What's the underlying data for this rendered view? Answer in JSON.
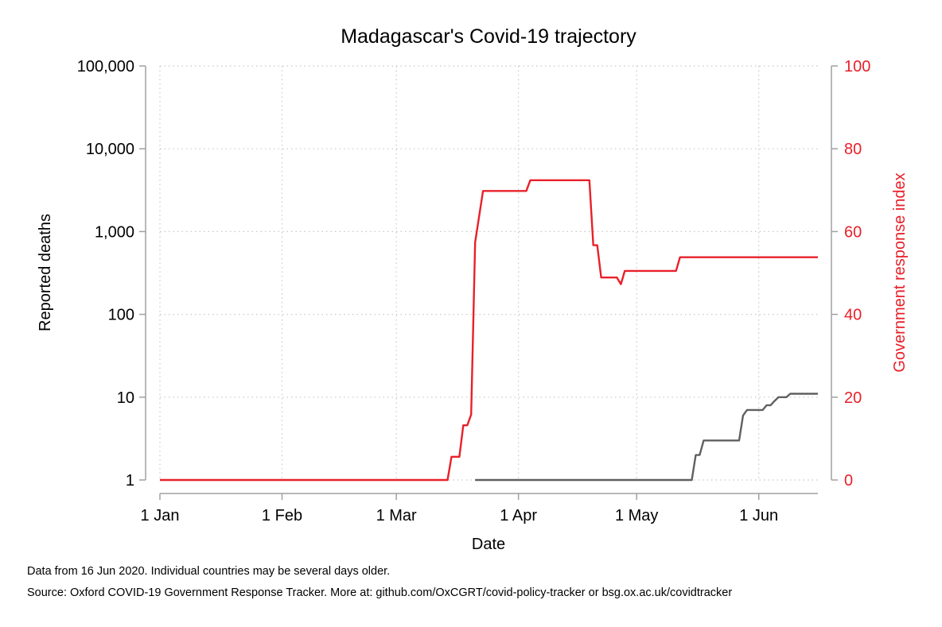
{
  "chart_data": {
    "type": "line",
    "title": "Madagascar's Covid-19 trajectory",
    "xlabel": "Date",
    "ylabel_left": "Reported deaths",
    "ylabel_right": "Government response index",
    "x_ticks": [
      "1 Jan",
      "1 Feb",
      "1 Mar",
      "1 Apr",
      "1 May",
      "1 Jun"
    ],
    "x_tick_dates": [
      "2020-01-01",
      "2020-02-01",
      "2020-03-01",
      "2020-04-01",
      "2020-05-01",
      "2020-06-01"
    ],
    "xlim": [
      "2020-01-01",
      "2020-06-16"
    ],
    "y_left_scale": "log",
    "y_left_ticks": [
      1,
      10,
      100,
      1000,
      10000,
      100000
    ],
    "y_left_tick_labels": [
      "1",
      "10",
      "100",
      "1,000",
      "10,000",
      "100,000"
    ],
    "y_left_lim": [
      1,
      100000
    ],
    "y_right_ticks": [
      0,
      20,
      40,
      60,
      80,
      100
    ],
    "y_right_tick_labels": [
      "0",
      "20",
      "40",
      "60",
      "80",
      "100"
    ],
    "y_right_lim": [
      0,
      100
    ],
    "grid": true,
    "colors": {
      "deaths": "#606060",
      "response": "#e8202a",
      "axis": "#a0a0a0",
      "grid": "#c8c8c8"
    },
    "series": [
      {
        "axis": "right",
        "color": "#e8202a",
        "points": [
          [
            "2020-01-01",
            0
          ],
          [
            "2020-03-14",
            0
          ],
          [
            "2020-03-15",
            5.6
          ],
          [
            "2020-03-17",
            5.6
          ],
          [
            "2020-03-18",
            13.2
          ],
          [
            "2020-03-19",
            13.2
          ],
          [
            "2020-03-20",
            15.8
          ],
          [
            "2020-03-21",
            57.4
          ],
          [
            "2020-03-23",
            69.8
          ],
          [
            "2020-04-03",
            69.8
          ],
          [
            "2020-04-04",
            72.4
          ],
          [
            "2020-04-19",
            72.4
          ],
          [
            "2020-04-20",
            56.7
          ],
          [
            "2020-04-21",
            56.7
          ],
          [
            "2020-04-22",
            48.9
          ],
          [
            "2020-04-26",
            48.9
          ],
          [
            "2020-04-27",
            47.3
          ],
          [
            "2020-04-28",
            50.5
          ],
          [
            "2020-05-11",
            50.5
          ],
          [
            "2020-05-12",
            53.8
          ],
          [
            "2020-06-16",
            53.8
          ]
        ]
      },
      {
        "axis": "left",
        "color": "#606060",
        "points": [
          [
            "2020-03-21",
            1
          ],
          [
            "2020-05-15",
            1
          ],
          [
            "2020-05-16",
            2
          ],
          [
            "2020-05-17",
            2
          ],
          [
            "2020-05-18",
            3
          ],
          [
            "2020-05-27",
            3
          ],
          [
            "2020-05-28",
            6
          ],
          [
            "2020-05-29",
            7
          ],
          [
            "2020-06-02",
            7
          ],
          [
            "2020-06-03",
            8
          ],
          [
            "2020-06-04",
            8
          ],
          [
            "2020-06-05",
            9
          ],
          [
            "2020-06-06",
            10
          ],
          [
            "2020-06-08",
            10
          ],
          [
            "2020-06-09",
            11
          ],
          [
            "2020-06-16",
            11
          ]
        ]
      }
    ]
  },
  "notes": {
    "line1": "Data from 16 Jun 2020. Individual countries may be several days older.",
    "line2": "Source: Oxford COVID-19 Government Response Tracker. More at: github.com/OxCGRT/covid-policy-tracker or bsg.ox.ac.uk/covidtracker"
  }
}
